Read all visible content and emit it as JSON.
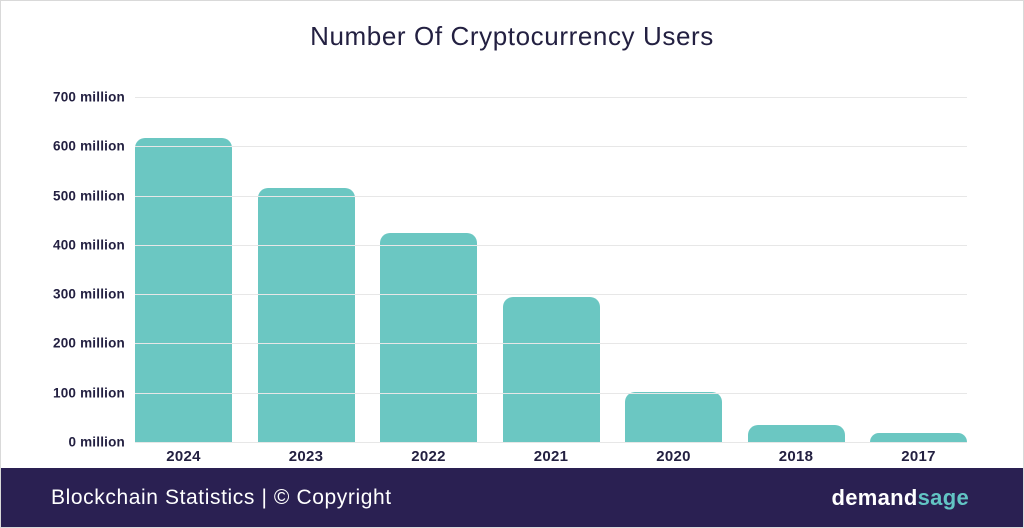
{
  "title": "Number Of Cryptocurrency Users",
  "chart_data": {
    "type": "bar",
    "title": "Number Of Cryptocurrency Users",
    "categories": [
      "2024",
      "2023",
      "2022",
      "2021",
      "2020",
      "2018",
      "2017"
    ],
    "values": [
      617,
      516,
      425,
      295,
      101,
      35,
      18
    ],
    "unit": "million",
    "xlabel": "",
    "ylabel": "",
    "ylim": [
      0,
      700
    ],
    "ytick_step": 100,
    "ytick_labels": [
      "700 million",
      "600 million",
      "500 million",
      "400 million",
      "300 million",
      "200 million",
      "100 million",
      "0 million"
    ],
    "grid": true,
    "legend": false,
    "bar_color": "#6bc7c2"
  },
  "footer": {
    "left_text": "Blockchain Statistics | © Copyright",
    "brand_part1": "demand",
    "brand_part2": "sage"
  },
  "colors": {
    "bar": "#6bc7c2",
    "footer_background": "#2a2052",
    "text_dark": "#232041",
    "gridline": "#e7e7e7",
    "brand_accent": "#62c4c4",
    "footer_text": "#ffffff"
  }
}
